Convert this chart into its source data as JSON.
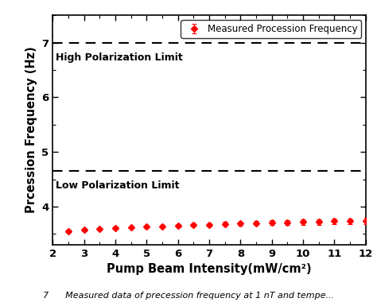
{
  "x": [
    2.5,
    3.0,
    3.5,
    4.0,
    4.5,
    5.0,
    5.5,
    6.0,
    6.5,
    7.0,
    7.5,
    8.0,
    8.5,
    9.0,
    9.5,
    10.0,
    10.5,
    11.0,
    11.5,
    12.0
  ],
  "y": [
    3.55,
    3.57,
    3.59,
    3.61,
    3.62,
    3.63,
    3.64,
    3.65,
    3.66,
    3.67,
    3.68,
    3.69,
    3.7,
    3.71,
    3.71,
    3.72,
    3.72,
    3.73,
    3.73,
    3.74
  ],
  "yerr": [
    0.02,
    0.02,
    0.02,
    0.02,
    0.02,
    0.02,
    0.02,
    0.025,
    0.03,
    0.03,
    0.035,
    0.035,
    0.04,
    0.04,
    0.045,
    0.05,
    0.05,
    0.05,
    0.05,
    0.055
  ],
  "high_limit": 7.0,
  "low_limit": 4.65,
  "high_label": "High Polarization Limit",
  "low_label": "Low Polarization Limit",
  "xlabel": "Pump Beam Intensity(mW/cm²)",
  "ylabel": "Prcession Frequency (Hz)",
  "legend_label": "Measured Procession Frequency",
  "xlim": [
    2,
    12
  ],
  "ylim": [
    3.3,
    7.5
  ],
  "yticks": [
    4,
    5,
    6,
    7
  ],
  "xticks": [
    2,
    3,
    4,
    5,
    6,
    7,
    8,
    9,
    10,
    11,
    12
  ],
  "marker_color": "red",
  "marker": "D",
  "marker_size": 4,
  "dashes": [
    6,
    4
  ],
  "dash_linewidth": 1.5,
  "caption": "7      Measured data of precession frequency at 1 nT and tempe..."
}
